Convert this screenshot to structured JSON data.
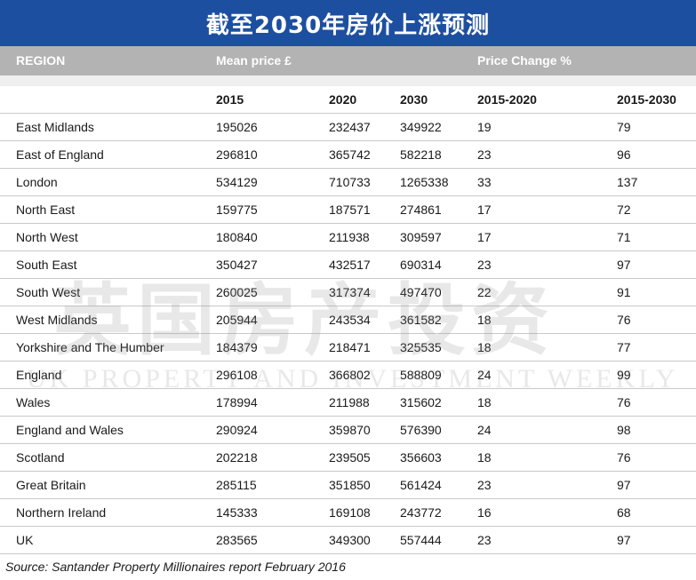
{
  "title": "截至2030年房价上涨预测",
  "header": {
    "region": "REGION",
    "mean_price": "Mean price £",
    "price_change": "Price Change %"
  },
  "subheader": {
    "y2015": "2015",
    "y2020": "2020",
    "y2030": "2030",
    "c2015_2020": "2015-2020",
    "c2015_2030": "2015-2030"
  },
  "watermark": {
    "cn": "英国房产投资",
    "en": "UK PROPERTY AND INVESTMENT WEEKLY"
  },
  "source": "Source: Santander Property Millionaires report February 2016",
  "chart_data": {
    "type": "table",
    "title": "截至2030年房价上涨预测",
    "columns": [
      "REGION",
      "2015",
      "2020",
      "2030",
      "2015-2020",
      "2015-2030"
    ],
    "rows": [
      {
        "region": "East Midlands",
        "p2015": "195026",
        "p2020": "232437",
        "p2030": "349922",
        "c1": "19",
        "c2": "79"
      },
      {
        "region": "East of England",
        "p2015": "296810",
        "p2020": "365742",
        "p2030": "582218",
        "c1": "23",
        "c2": "96"
      },
      {
        "region": "London",
        "p2015": "534129",
        "p2020": "710733",
        "p2030": "1265338",
        "c1": "33",
        "c2": "137"
      },
      {
        "region": "North East",
        "p2015": "159775",
        "p2020": "187571",
        "p2030": "274861",
        "c1": "17",
        "c2": "72"
      },
      {
        "region": "North West",
        "p2015": "180840",
        "p2020": "211938",
        "p2030": "309597",
        "c1": "17",
        "c2": "71"
      },
      {
        "region": "South East",
        "p2015": "350427",
        "p2020": "432517",
        "p2030": "690314",
        "c1": "23",
        "c2": "97"
      },
      {
        "region": "South West",
        "p2015": "260025",
        "p2020": "317374",
        "p2030": "497470",
        "c1": "22",
        "c2": "91"
      },
      {
        "region": "West Midlands",
        "p2015": "205944",
        "p2020": "243534",
        "p2030": "361582",
        "c1": "18",
        "c2": "76"
      },
      {
        "region": "Yorkshire and The Humber",
        "p2015": "184379",
        "p2020": "218471",
        "p2030": "325535",
        "c1": "18",
        "c2": "77"
      },
      {
        "region": "England",
        "p2015": "296108",
        "p2020": "366802",
        "p2030": "588809",
        "c1": "24",
        "c2": "99"
      },
      {
        "region": "Wales",
        "p2015": "178994",
        "p2020": "211988",
        "p2030": "315602",
        "c1": "18",
        "c2": "76"
      },
      {
        "region": "England and Wales",
        "p2015": "290924",
        "p2020": "359870",
        "p2030": "576390",
        "c1": "24",
        "c2": "98"
      },
      {
        "region": "Scotland",
        "p2015": "202218",
        "p2020": "239505",
        "p2030": "356603",
        "c1": "18",
        "c2": "76"
      },
      {
        "region": "Great Britain",
        "p2015": "285115",
        "p2020": "351850",
        "p2030": "561424",
        "c1": "23",
        "c2": "97"
      },
      {
        "region": "Northern Ireland",
        "p2015": "145333",
        "p2020": "169108",
        "p2030": "243772",
        "c1": "16",
        "c2": "68"
      },
      {
        "region": "UK",
        "p2015": "283565",
        "p2020": "349300",
        "p2030": "557444",
        "c1": "23",
        "c2": "97"
      }
    ]
  }
}
